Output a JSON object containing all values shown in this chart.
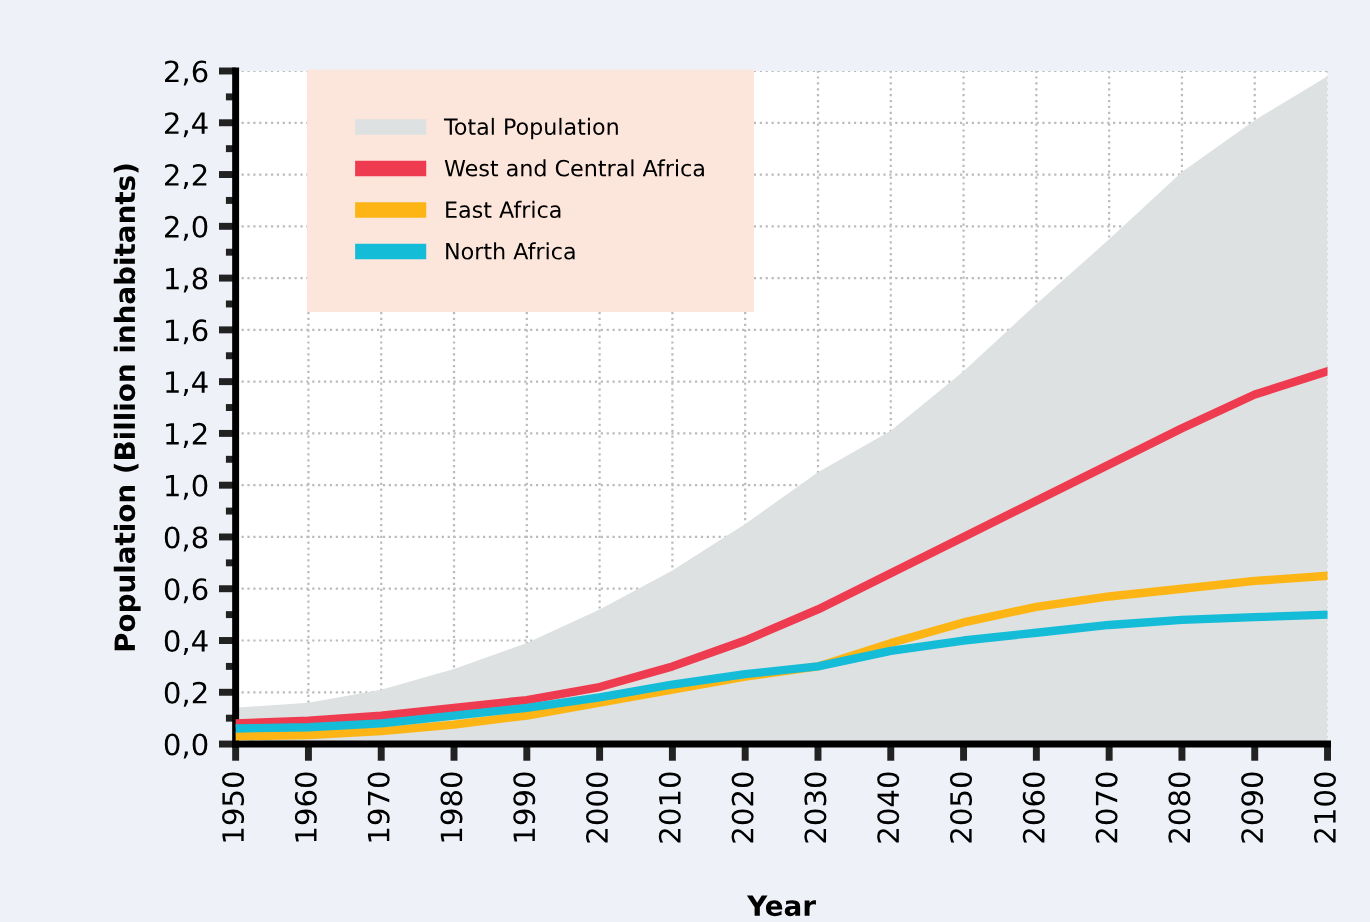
{
  "chart_data": {
    "type": "line",
    "xlabel": "Year",
    "ylabel": "Population (Billion inhabitants)",
    "x": [
      1950,
      1960,
      1970,
      1980,
      1990,
      2000,
      2010,
      2020,
      2030,
      2040,
      2050,
      2060,
      2070,
      2080,
      2090,
      2100
    ],
    "series": [
      {
        "name": "Total Population",
        "type": "area",
        "color": "#dde1e1",
        "values": [
          0.14,
          0.16,
          0.21,
          0.29,
          0.39,
          0.52,
          0.67,
          0.85,
          1.05,
          1.21,
          1.44,
          1.7,
          1.95,
          2.21,
          2.41,
          2.58
        ]
      },
      {
        "name": "West and Central Africa",
        "color": "#ef3b4f",
        "values": [
          0.08,
          0.09,
          0.11,
          0.14,
          0.17,
          0.22,
          0.3,
          0.4,
          0.52,
          0.66,
          0.8,
          0.94,
          1.08,
          1.22,
          1.35,
          1.44
        ]
      },
      {
        "name": "East Africa",
        "color": "#fdb515",
        "values": [
          0.03,
          0.035,
          0.05,
          0.075,
          0.11,
          0.16,
          0.21,
          0.26,
          0.3,
          0.39,
          0.47,
          0.53,
          0.57,
          0.6,
          0.63,
          0.65
        ]
      },
      {
        "name": "North Africa",
        "color": "#14bcd8",
        "values": [
          0.06,
          0.065,
          0.08,
          0.11,
          0.14,
          0.18,
          0.23,
          0.27,
          0.3,
          0.36,
          0.4,
          0.43,
          0.46,
          0.48,
          0.49,
          0.5
        ]
      }
    ],
    "xlim": [
      1950,
      2100
    ],
    "xticks": [
      1950,
      1960,
      1970,
      1980,
      1990,
      2000,
      2010,
      2020,
      2030,
      2040,
      2050,
      2060,
      2070,
      2080,
      2090,
      2100
    ],
    "ylim": [
      0,
      2.6
    ],
    "yticks": [
      {
        "value": 0,
        "label": "0,0"
      },
      {
        "value": 0.1,
        "label": null
      },
      {
        "value": 0.2,
        "label": "0,2"
      },
      {
        "value": 0.3,
        "label": null
      },
      {
        "value": 0.4,
        "label": "0,4"
      },
      {
        "value": 0.5,
        "label": null
      },
      {
        "value": 0.6,
        "label": "0,6"
      },
      {
        "value": 0.7,
        "label": null
      },
      {
        "value": 0.8,
        "label": "0,8"
      },
      {
        "value": 0.9,
        "label": null
      },
      {
        "value": 1.0,
        "label": "1,0"
      },
      {
        "value": 1.1,
        "label": null
      },
      {
        "value": 1.2,
        "label": "1,2"
      },
      {
        "value": 1.3,
        "label": null
      },
      {
        "value": 1.4,
        "label": "1,4"
      },
      {
        "value": 1.5,
        "label": null
      },
      {
        "value": 1.6,
        "label": "1,6"
      },
      {
        "value": 1.7,
        "label": null
      },
      {
        "value": 1.8,
        "label": "1,8"
      },
      {
        "value": 1.9,
        "label": null
      },
      {
        "value": 2.0,
        "label": "2,0"
      },
      {
        "value": 2.1,
        "label": null
      },
      {
        "value": 2.2,
        "label": "2,2"
      },
      {
        "value": 2.3,
        "label": null
      },
      {
        "value": 2.4,
        "label": "2,4"
      },
      {
        "value": 2.5,
        "label": null
      },
      {
        "value": 2.6,
        "label": "2,6"
      }
    ],
    "grid": true,
    "legend": "top left",
    "line_style": "solid",
    "marker": "none"
  }
}
